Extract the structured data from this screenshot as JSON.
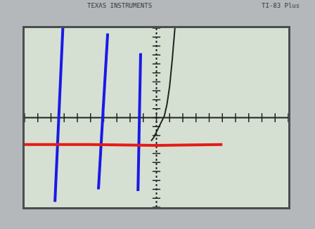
{
  "chart_data": {
    "type": "line",
    "annotations": [
      "TEXAS INSTRUMENTS",
      "TI-83 Plus"
    ],
    "xlim": [
      -10,
      10
    ],
    "ylim": [
      -10,
      10
    ],
    "xticks": [
      -10,
      -9,
      -8,
      -7,
      -6,
      -5,
      -4,
      -3,
      -2,
      -1,
      0,
      1,
      2,
      3,
      4,
      5,
      6,
      7,
      8,
      9,
      10
    ],
    "yticks": [
      -10,
      -9,
      -8,
      -7,
      -6,
      -5,
      -4,
      -3,
      -2,
      -1,
      0,
      1,
      2,
      3,
      4,
      5,
      6,
      7,
      8,
      9,
      10
    ],
    "tick_labels": false,
    "grid": false,
    "series": [
      {
        "color": "#222222",
        "line_style": "solid",
        "x": [
          -0.4,
          -0.2,
          0,
          0.2,
          0.4,
          0.6,
          0.8,
          1.0,
          1.2,
          1.4
        ],
        "values": [
          -2.6,
          -2.2,
          -1.6,
          -1.0,
          -0.4,
          0.2,
          1.5,
          3.5,
          6.5,
          10
        ]
      },
      {
        "color": "#1a1ae6",
        "line_style": "solid",
        "x": [
          -7.7,
          -7.1
        ],
        "values": [
          -9.4,
          10
        ]
      },
      {
        "color": "#1a1ae6",
        "line_style": "solid",
        "x": [
          -4.4,
          -3.7
        ],
        "values": [
          -8.0,
          9.4
        ]
      },
      {
        "color": "#1a1ae6",
        "line_style": "solid",
        "x": [
          -1.4,
          -1.2
        ],
        "values": [
          -8.2,
          7.2
        ]
      },
      {
        "color": "#e61a1a",
        "line_style": "solid",
        "x": [
          -10,
          -5,
          0,
          5
        ],
        "values": [
          -3.0,
          -3.0,
          -3.1,
          -3.0
        ]
      }
    ]
  }
}
